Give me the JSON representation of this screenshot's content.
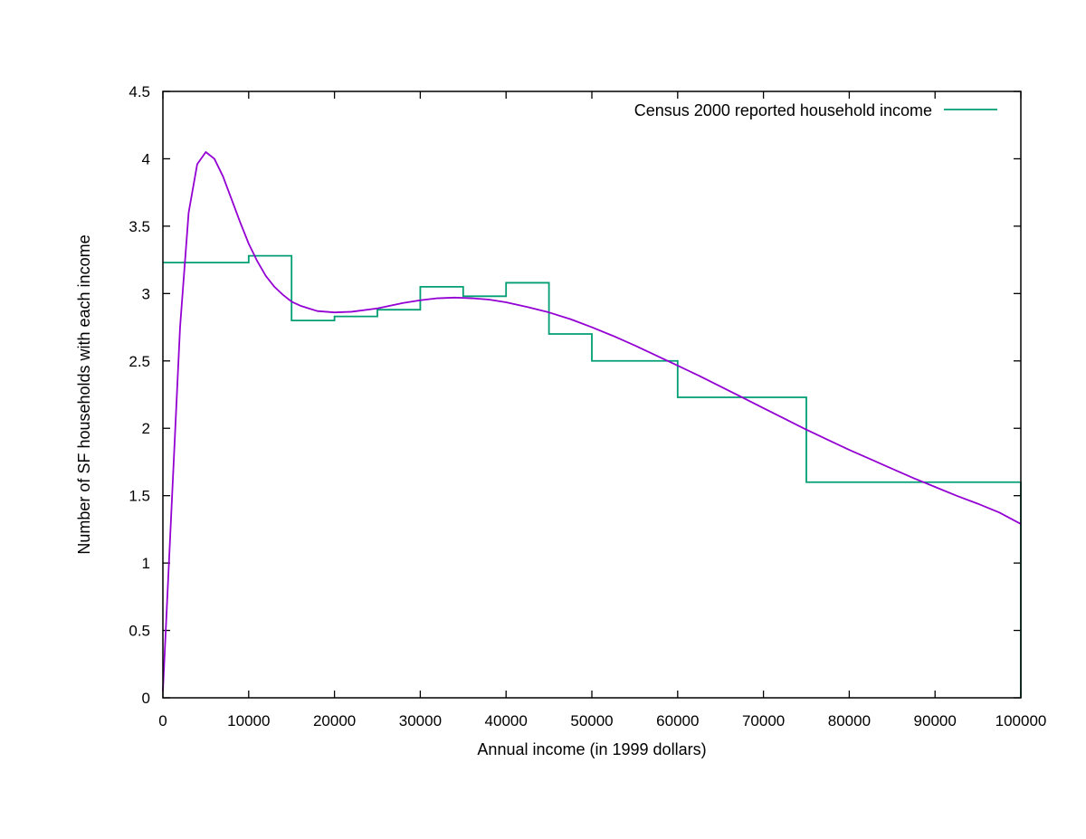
{
  "chart_data": {
    "type": "line",
    "title": "",
    "xlabel": "Annual income (in 1999 dollars)",
    "ylabel": "Number of SF households with each income",
    "xlim": [
      0,
      100000
    ],
    "ylim": [
      0,
      4.5
    ],
    "grid": false,
    "legend_position": "top-right",
    "x_ticks": [
      0,
      10000,
      20000,
      30000,
      40000,
      50000,
      60000,
      70000,
      80000,
      90000,
      100000
    ],
    "x_tick_labels": [
      "0",
      "10000",
      "20000",
      "30000",
      "40000",
      "50000",
      "60000",
      "70000",
      "80000",
      "90000",
      "100000"
    ],
    "y_ticks": [
      0,
      0.5,
      1,
      1.5,
      2,
      2.5,
      3,
      3.5,
      4,
      4.5
    ],
    "y_tick_labels": [
      "0",
      "0.5",
      "1",
      "1.5",
      "2",
      "2.5",
      "3",
      "3.5",
      "4",
      "4.5"
    ],
    "series": [
      {
        "name": "Census 2000 reported household income",
        "kind": "step",
        "color": "#009e73",
        "in_legend": true,
        "bins": [
          {
            "from": 0,
            "to": 10000,
            "value": 3.23
          },
          {
            "from": 10000,
            "to": 15000,
            "value": 3.28
          },
          {
            "from": 15000,
            "to": 20000,
            "value": 2.8
          },
          {
            "from": 20000,
            "to": 25000,
            "value": 2.83
          },
          {
            "from": 25000,
            "to": 30000,
            "value": 2.88
          },
          {
            "from": 30000,
            "to": 35000,
            "value": 3.05
          },
          {
            "from": 35000,
            "to": 40000,
            "value": 2.98
          },
          {
            "from": 40000,
            "to": 45000,
            "value": 3.08
          },
          {
            "from": 45000,
            "to": 50000,
            "value": 2.7
          },
          {
            "from": 50000,
            "to": 60000,
            "value": 2.5
          },
          {
            "from": 60000,
            "to": 75000,
            "value": 2.23
          },
          {
            "from": 75000,
            "to": 100000,
            "value": 1.6
          }
        ]
      },
      {
        "name": "Fitted curve",
        "kind": "curve",
        "color": "#9400d3",
        "in_legend": false,
        "points": [
          [
            0,
            0.05
          ],
          [
            1000,
            1.4
          ],
          [
            2000,
            2.75
          ],
          [
            3000,
            3.6
          ],
          [
            4000,
            3.96
          ],
          [
            5000,
            4.05
          ],
          [
            6000,
            4.0
          ],
          [
            7000,
            3.87
          ],
          [
            8000,
            3.7
          ],
          [
            9000,
            3.53
          ],
          [
            10000,
            3.37
          ],
          [
            11000,
            3.24
          ],
          [
            12000,
            3.13
          ],
          [
            13000,
            3.05
          ],
          [
            14000,
            2.99
          ],
          [
            15000,
            2.94
          ],
          [
            16000,
            2.91
          ],
          [
            17000,
            2.89
          ],
          [
            18000,
            2.87
          ],
          [
            20000,
            2.86
          ],
          [
            22000,
            2.865
          ],
          [
            25000,
            2.89
          ],
          [
            28000,
            2.93
          ],
          [
            30000,
            2.95
          ],
          [
            32000,
            2.965
          ],
          [
            34000,
            2.97
          ],
          [
            36000,
            2.965
          ],
          [
            38000,
            2.955
          ],
          [
            40000,
            2.935
          ],
          [
            42500,
            2.9
          ],
          [
            45000,
            2.86
          ],
          [
            47500,
            2.81
          ],
          [
            50000,
            2.75
          ],
          [
            52500,
            2.685
          ],
          [
            55000,
            2.615
          ],
          [
            57500,
            2.54
          ],
          [
            60000,
            2.465
          ],
          [
            62500,
            2.39
          ],
          [
            65000,
            2.31
          ],
          [
            67500,
            2.23
          ],
          [
            70000,
            2.15
          ],
          [
            72500,
            2.07
          ],
          [
            75000,
            1.99
          ],
          [
            77500,
            1.915
          ],
          [
            80000,
            1.84
          ],
          [
            82500,
            1.77
          ],
          [
            85000,
            1.7
          ],
          [
            87500,
            1.63
          ],
          [
            90000,
            1.565
          ],
          [
            92500,
            1.5
          ],
          [
            95000,
            1.44
          ],
          [
            97500,
            1.375
          ],
          [
            100000,
            1.29
          ]
        ]
      }
    ]
  }
}
